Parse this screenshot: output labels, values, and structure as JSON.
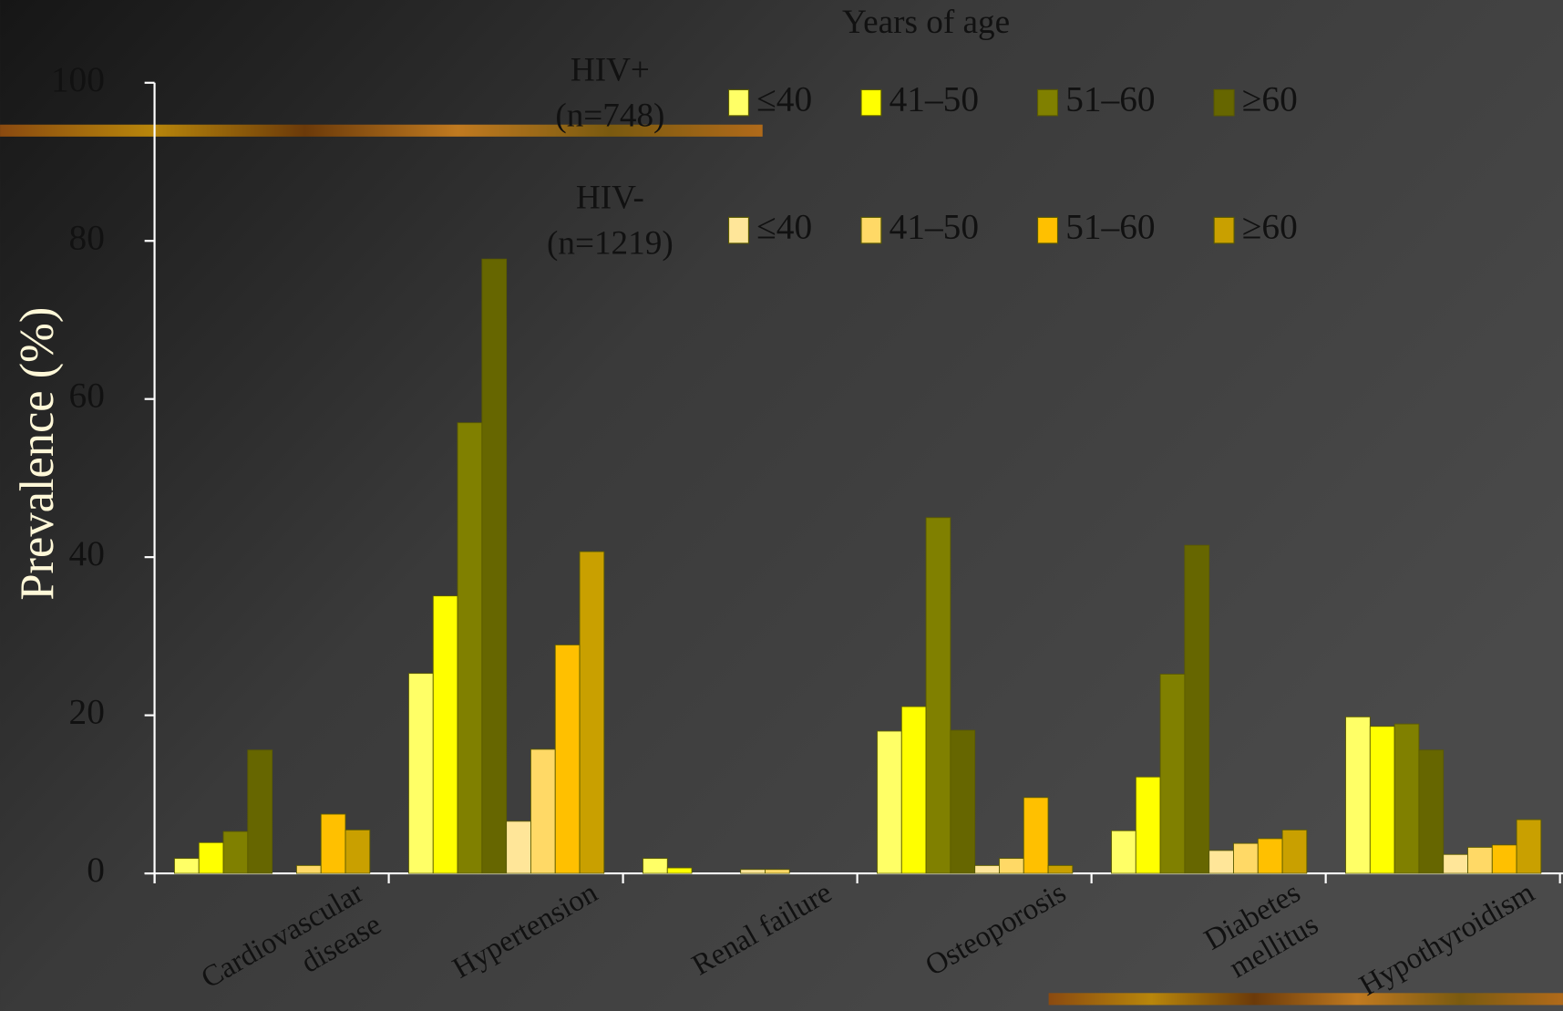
{
  "chart_data": {
    "type": "bar",
    "legend_title": "Years of age",
    "y_label": "Prevalence (%)",
    "categories": [
      [
        "Cardiovascular",
        "disease"
      ],
      [
        "Hypertension"
      ],
      [
        "Renal failure"
      ],
      [
        "Osteoporosis"
      ],
      [
        "Diabetes",
        "mellitus"
      ],
      [
        "Hypothyroidism"
      ]
    ],
    "legend_groups": [
      [
        "HIV+",
        "(n=748)"
      ],
      [
        "HIV-",
        "(n=1219)"
      ]
    ],
    "series": [
      {
        "name": "≤40",
        "color": "#ffff66",
        "values": [
          1.9,
          25.3,
          1.9,
          18.0,
          5.4,
          19.8
        ]
      },
      {
        "name": "41–50",
        "color": "#ffff00",
        "values": [
          3.9,
          35.1,
          0.7,
          21.1,
          12.2,
          18.6
        ]
      },
      {
        "name": "51–60",
        "color": "#808000",
        "values": [
          5.3,
          57.0,
          0,
          45.0,
          25.2,
          18.9
        ]
      },
      {
        "name": "≥60",
        "color": "#666600",
        "values": [
          15.6,
          77.7,
          0,
          18.1,
          41.5,
          15.6
        ]
      },
      {
        "name": "≤40",
        "color": "#ffe699",
        "values": [
          0,
          6.6,
          0.5,
          1.0,
          2.9,
          2.4
        ]
      },
      {
        "name": "41–50",
        "color": "#ffd966",
        "values": [
          1.0,
          15.7,
          0.5,
          1.9,
          3.8,
          3.3
        ]
      },
      {
        "name": "51–60",
        "color": "#ffc000",
        "values": [
          7.5,
          28.9,
          0,
          9.6,
          4.4,
          3.6
        ]
      },
      {
        "name": "≥60",
        "color": "#c9a000",
        "values": [
          5.5,
          40.7,
          0,
          1.0,
          5.5,
          6.8
        ]
      }
    ],
    "ylim": [
      0,
      100
    ],
    "yticks": [
      0,
      20,
      40,
      60,
      80,
      100
    ]
  }
}
